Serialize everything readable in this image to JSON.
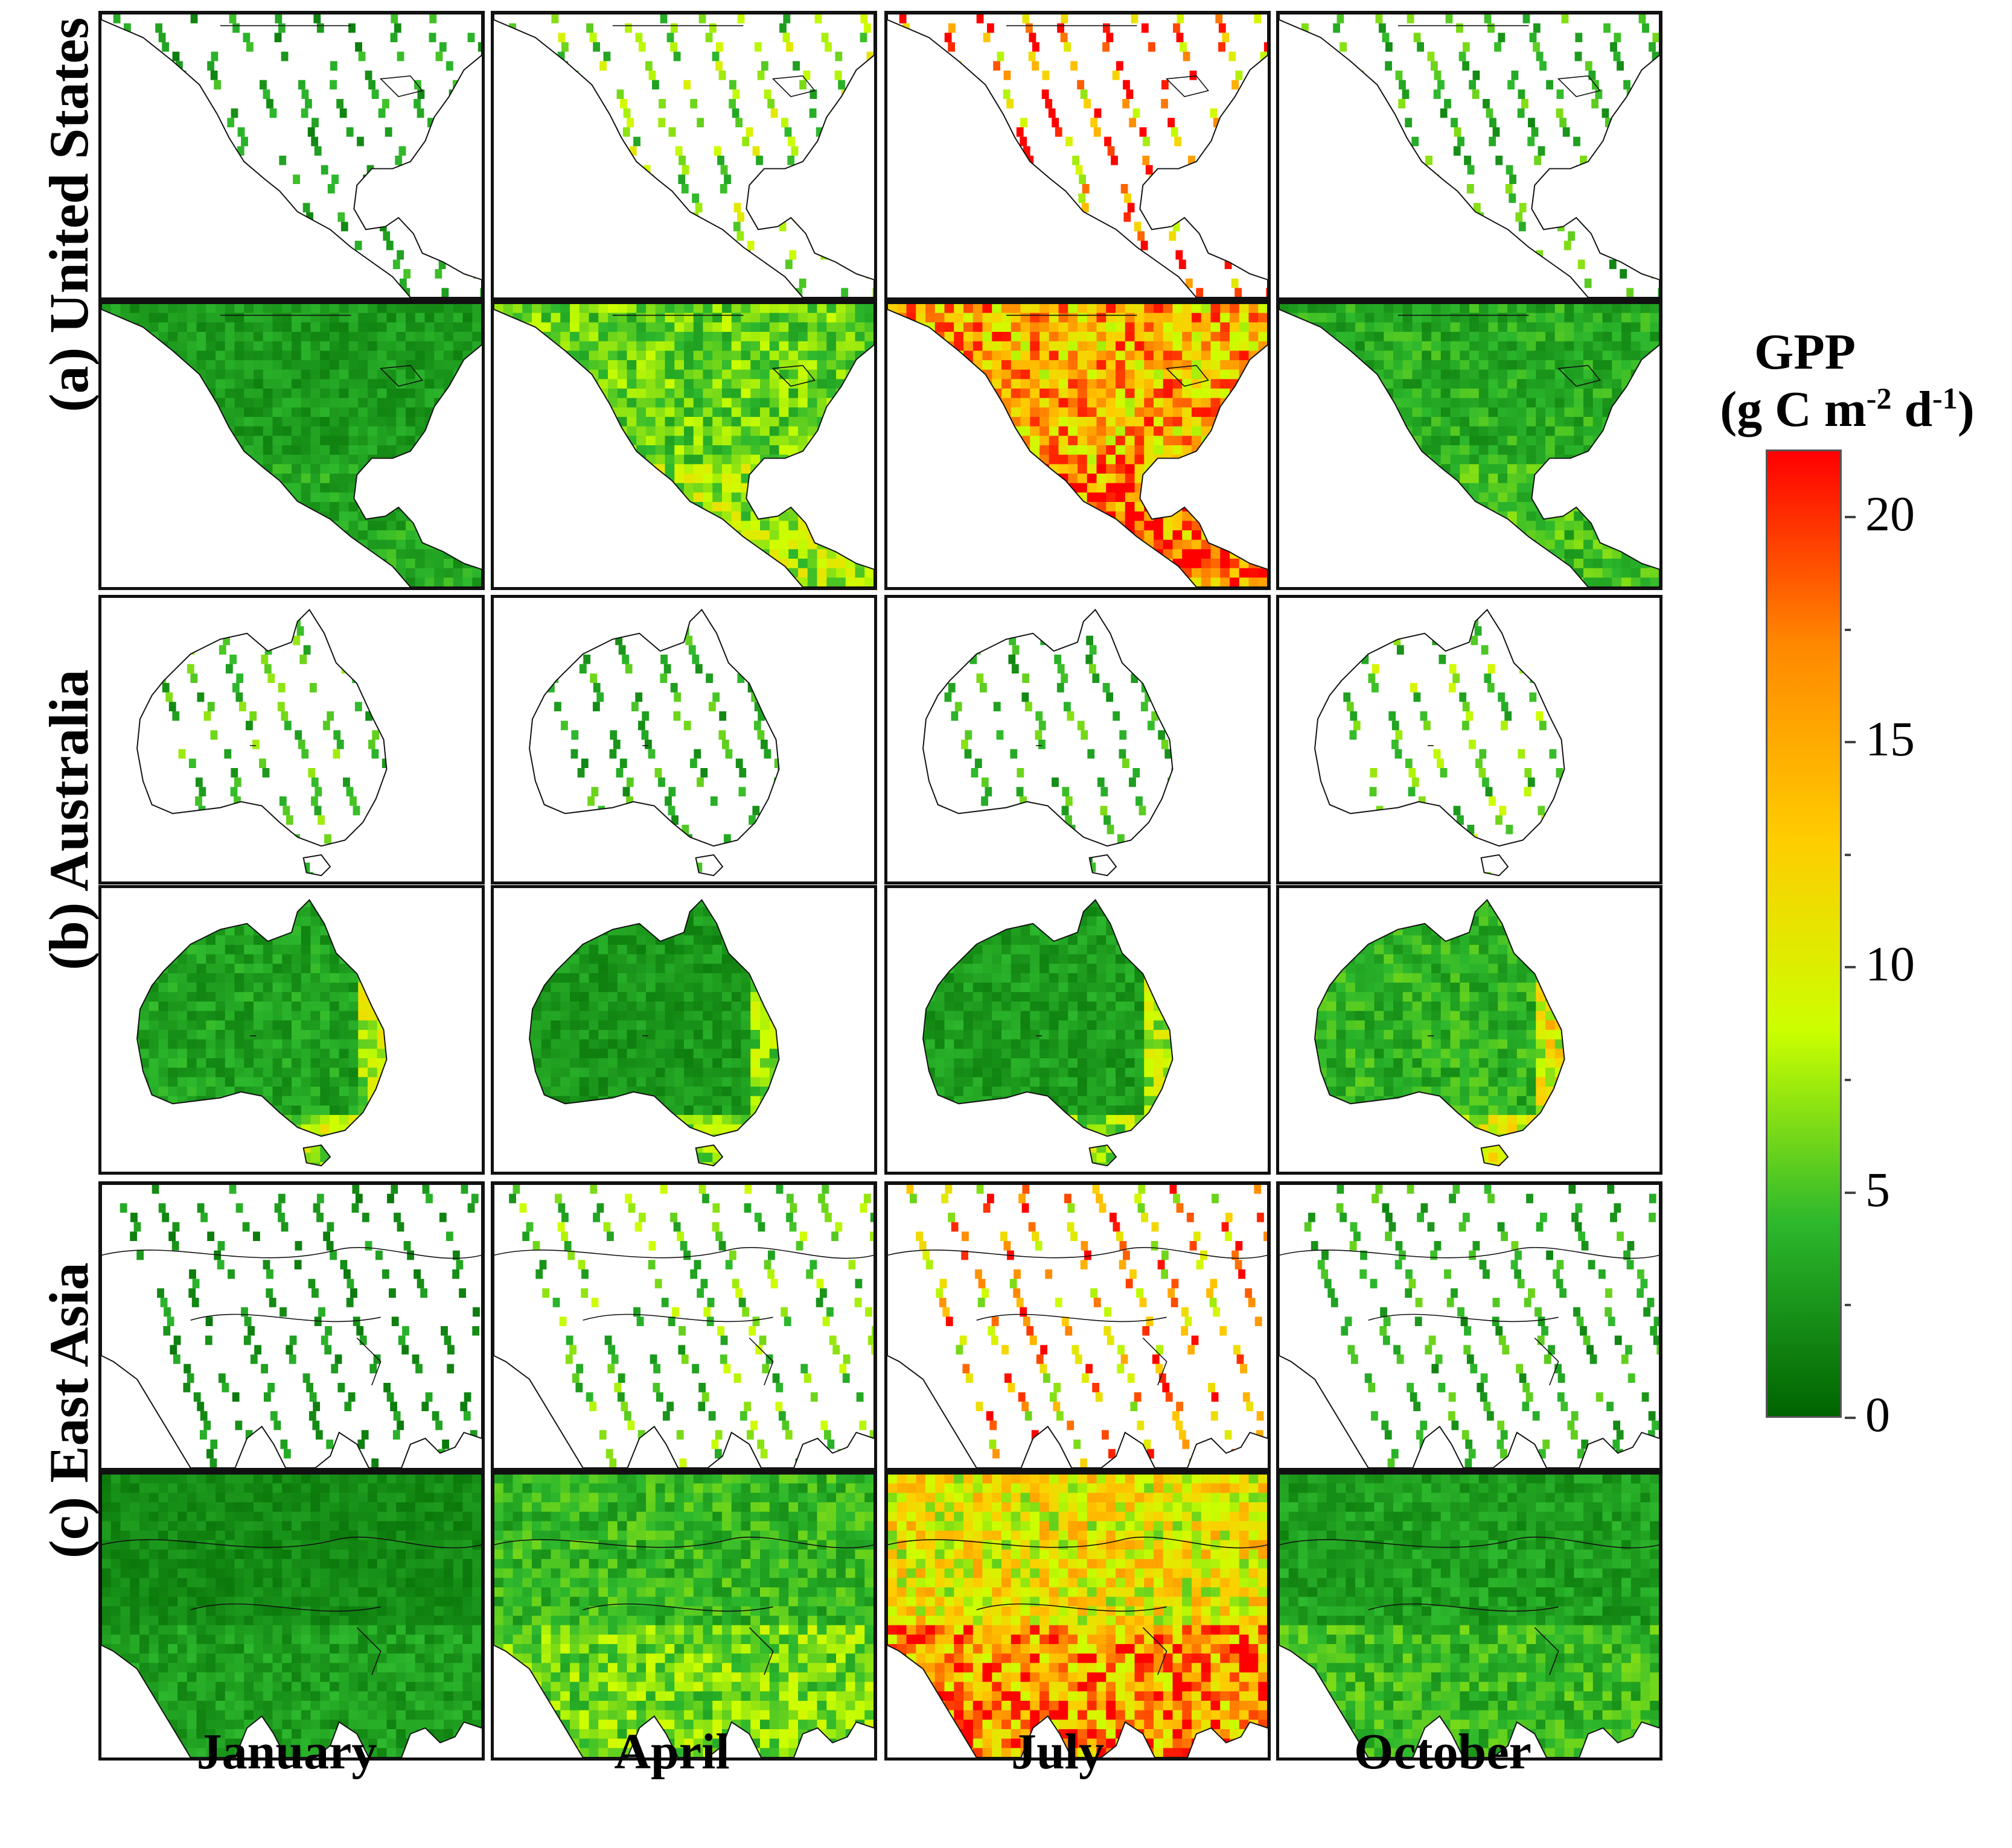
{
  "figure": {
    "months": [
      "January",
      "April",
      "July",
      "October"
    ],
    "regions": [
      {
        "key": "us",
        "label": "(a) United States"
      },
      {
        "key": "au",
        "label": "(b) Australia"
      },
      {
        "key": "ea",
        "label": "(c) East Asia"
      }
    ],
    "row_types": [
      "satellite swath observations (sparse)",
      "continuous GPP estimate"
    ],
    "colorbar": {
      "title_line1": "GPP",
      "title_line2_prefix": "(g C m",
      "title_line2_sup1": "-2",
      "title_line2_mid": " d",
      "title_line2_sup2": "-1",
      "title_line2_suffix": ")",
      "min": 0,
      "max": 21.5,
      "ticks": [
        "0",
        "5",
        "10",
        "15",
        "20"
      ],
      "tick_values": [
        0,
        5,
        10,
        15,
        20
      ],
      "colors": [
        "#006400",
        "#2db82d",
        "#ccff00",
        "#ffcc00",
        "#ff8800",
        "#ff0000"
      ]
    },
    "seasonal_intensity": {
      "us": [
        0.15,
        0.32,
        0.78,
        0.2
      ],
      "au": [
        0.22,
        0.18,
        0.2,
        0.28
      ],
      "ea": [
        0.12,
        0.26,
        0.66,
        0.18
      ]
    }
  }
}
